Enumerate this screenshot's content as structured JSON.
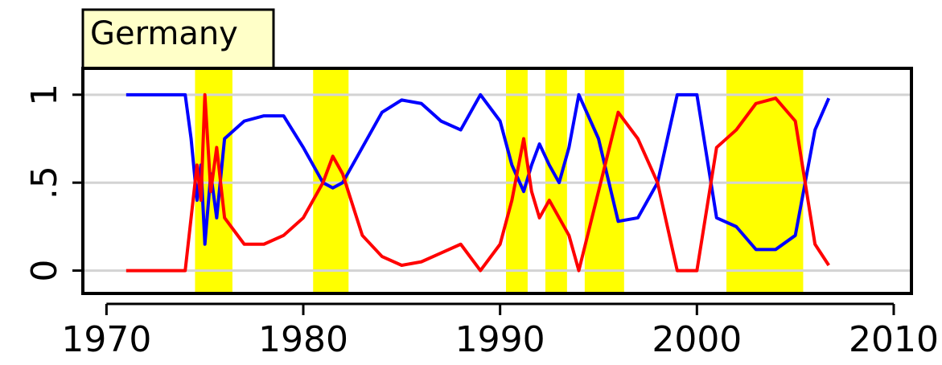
{
  "chart_data": {
    "type": "line",
    "title": "Germany",
    "x": [
      1971,
      1974,
      1974.3,
      1974.6,
      1974.8,
      1975,
      1975.3,
      1975.6,
      1976,
      1977,
      1978,
      1979,
      1980,
      1981,
      1981.5,
      1982,
      1983,
      1984,
      1985,
      1986,
      1987,
      1988,
      1989,
      1990,
      1990.6,
      1991.2,
      1991.6,
      1992,
      1992.5,
      1993,
      1993.5,
      1994,
      1995,
      1996,
      1997,
      1998,
      1999,
      2000,
      2001,
      2002,
      2003,
      2004,
      2005,
      2006,
      2006.7
    ],
    "series": [
      {
        "color": "#0000ff",
        "values": [
          1,
          1,
          0.75,
          0.4,
          0.6,
          0.15,
          0.55,
          0.3,
          0.75,
          0.85,
          0.88,
          0.88,
          0.7,
          0.5,
          0.47,
          0.5,
          0.7,
          0.9,
          0.97,
          0.95,
          0.85,
          0.8,
          1,
          0.85,
          0.6,
          0.45,
          0.6,
          0.72,
          0.6,
          0.5,
          0.7,
          1,
          0.75,
          0.28,
          0.3,
          0.5,
          1,
          1,
          0.3,
          0.25,
          0.12,
          0.12,
          0.2,
          0.8,
          0.98
        ]
      },
      {
        "color": "#ff0000",
        "values": [
          0,
          0,
          0.3,
          0.6,
          0.4,
          1,
          0.45,
          0.7,
          0.3,
          0.15,
          0.15,
          0.2,
          0.3,
          0.5,
          0.65,
          0.55,
          0.2,
          0.08,
          0.03,
          0.05,
          0.1,
          0.15,
          0,
          0.15,
          0.4,
          0.75,
          0.45,
          0.3,
          0.4,
          0.3,
          0.2,
          0,
          0.45,
          0.9,
          0.75,
          0.5,
          0,
          0,
          0.7,
          0.8,
          0.95,
          0.98,
          0.85,
          0.15,
          0.03
        ]
      }
    ],
    "shaded": [
      [
        1974.5,
        1976.4
      ],
      [
        1980.5,
        1982.3
      ],
      [
        1990.3,
        1991.4
      ],
      [
        1992.3,
        1993.4
      ],
      [
        1994.3,
        1996.3
      ],
      [
        2001.5,
        2005.4
      ]
    ],
    "shade_color": "#ffff00",
    "xlim": [
      1968.8,
      2010.9
    ],
    "xticks": [
      1970,
      1980,
      1990,
      2000,
      2010
    ],
    "ylim": [
      -0.13,
      1.15
    ],
    "yticks": [
      0,
      {
        "value": 0.5,
        "label": ".5"
      },
      1
    ],
    "grid": true
  }
}
